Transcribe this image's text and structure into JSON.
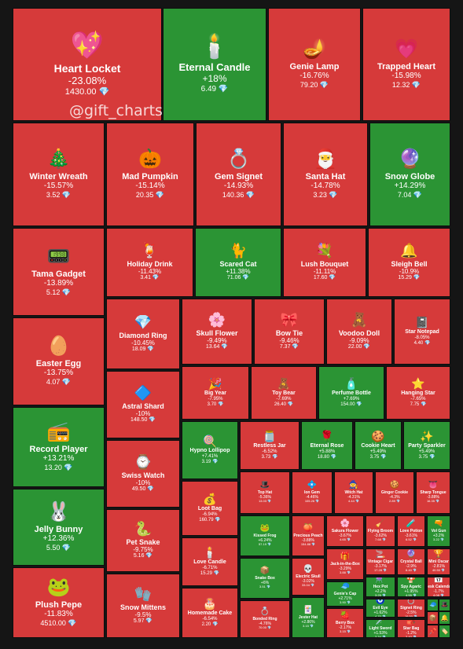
{
  "watermark": "@gift_charts",
  "colors": {
    "down": "#d63a3a",
    "up": "#2b9434",
    "gem": "#4fc3f7"
  },
  "diamond_glyph": "💎",
  "chart_data": {
    "type": "treemap",
    "value_unit": "💎",
    "items": [
      {
        "name": "Heart Locket",
        "change": "-23.08%",
        "price": "1430.00",
        "icon": "💖"
      },
      {
        "name": "Eternal Candle",
        "change": "+18%",
        "price": "6.49",
        "icon": "🕯️"
      },
      {
        "name": "Genie Lamp",
        "change": "-16.76%",
        "price": "79.20",
        "icon": "🪔"
      },
      {
        "name": "Trapped Heart",
        "change": "-15.98%",
        "price": "12.32",
        "icon": "💗"
      },
      {
        "name": "Winter Wreath",
        "change": "-15.57%",
        "price": "3.52",
        "icon": "🎄"
      },
      {
        "name": "Mad Pumpkin",
        "change": "-15.14%",
        "price": "20.35",
        "icon": "🎃"
      },
      {
        "name": "Gem Signet",
        "change": "-14.93%",
        "price": "140.36",
        "icon": "💍"
      },
      {
        "name": "Santa Hat",
        "change": "-14.78%",
        "price": "3.23",
        "icon": "🎅"
      },
      {
        "name": "Snow Globe",
        "change": "+14.29%",
        "price": "7.04",
        "icon": "🔮"
      },
      {
        "name": "Tama Gadget",
        "change": "-13.89%",
        "price": "5.12",
        "icon": "📟"
      },
      {
        "name": "Holiday Drink",
        "change": "-11.43%",
        "price": "3.41",
        "icon": "🍹"
      },
      {
        "name": "Scared Cat",
        "change": "+11.38%",
        "price": "71.06",
        "icon": "🐈"
      },
      {
        "name": "Lush Bouquet",
        "change": "-11.11%",
        "price": "17.60",
        "icon": "💐"
      },
      {
        "name": "Sleigh Bell",
        "change": "-10.9%",
        "price": "15.29",
        "icon": "🔔"
      },
      {
        "name": "Easter Egg",
        "change": "-13.75%",
        "price": "4.07",
        "icon": "🥚"
      },
      {
        "name": "Diamond Ring",
        "change": "-10.45%",
        "price": "18.09",
        "icon": "💎"
      },
      {
        "name": "Skull Flower",
        "change": "-9.49%",
        "price": "13.64",
        "icon": "🌸"
      },
      {
        "name": "Bow Tie",
        "change": "-9.46%",
        "price": "7.37",
        "icon": "🎀"
      },
      {
        "name": "Voodoo Doll",
        "change": "-9.09%",
        "price": "22.00",
        "icon": "🧸"
      },
      {
        "name": "Star Notepad",
        "change": "-8.05%",
        "price": "4.40",
        "icon": "📓"
      },
      {
        "name": "Astral Shard",
        "change": "-10%",
        "price": "148.50",
        "icon": "🔷"
      },
      {
        "name": "Big Year",
        "change": "-7.95%",
        "price": "3.70",
        "icon": "🎉"
      },
      {
        "name": "Toy Bear",
        "change": "-7.69%",
        "price": "26.40",
        "icon": "🧸"
      },
      {
        "name": "Perfume Bottle",
        "change": "+7.69%",
        "price": "154.00",
        "icon": "🧴"
      },
      {
        "name": "Hanging Star",
        "change": "-7.65%",
        "price": "7.75",
        "icon": "⭐"
      },
      {
        "name": "Record Player",
        "change": "+13.21%",
        "price": "13.20",
        "icon": "📻"
      },
      {
        "name": "Hypno Lollipop",
        "change": "+7.41%",
        "price": "3.19",
        "icon": "🍭"
      },
      {
        "name": "Restless Jar",
        "change": "-6.52%",
        "price": "3.73",
        "icon": "🫙"
      },
      {
        "name": "Eternal Rose",
        "change": "+5.88%",
        "price": "18.80",
        "icon": "🌹"
      },
      {
        "name": "Cookie Heart",
        "change": "+5.49%",
        "price": "3.75",
        "icon": "🍪"
      },
      {
        "name": "Party Sparkler",
        "change": "+5.49%",
        "price": "3.75",
        "icon": "✨"
      },
      {
        "name": "Swiss Watch",
        "change": "-10%",
        "price": "49.50",
        "icon": "⌚"
      },
      {
        "name": "Top Hat",
        "change": "-5.36%",
        "price": "13.03",
        "icon": "🎩"
      },
      {
        "name": "Ion Gem",
        "change": "-4.46%",
        "price": "105.26",
        "icon": "💠"
      },
      {
        "name": "Witch Hat",
        "change": "-4.31%",
        "price": "4.44",
        "icon": "🧙"
      },
      {
        "name": "Ginger Cookie",
        "change": "-4.3%",
        "price": "2.89",
        "icon": "🍪"
      },
      {
        "name": "Sharp Tongue",
        "change": "-3.88%",
        "price": "16.35",
        "icon": "👅"
      },
      {
        "name": "Loot Bag",
        "change": "-6.94%",
        "price": "160.79",
        "icon": "💰"
      },
      {
        "name": "Jelly Bunny",
        "change": "+12.36%",
        "price": "5.50",
        "icon": "🐰"
      },
      {
        "name": "Pet Snake",
        "change": "-9.75%",
        "price": "5.16",
        "icon": "🐍"
      },
      {
        "name": "Kissed Frog",
        "change": "+6.24%",
        "price": "57.19",
        "icon": "🐸"
      },
      {
        "name": "Precious Peach",
        "change": "-3.88%",
        "price": "154.88",
        "icon": "🍑"
      },
      {
        "name": "Sakura Flower",
        "change": "-3.67%",
        "price": "4.65",
        "icon": "🌸"
      },
      {
        "name": "Flying Broom",
        "change": "-3.62%",
        "price": "7.68",
        "icon": "🧹"
      },
      {
        "name": "Love Potion",
        "change": "-3.61%",
        "price": "6.52",
        "icon": "🧪"
      },
      {
        "name": "Vol Gun",
        "change": "+3.2%",
        "price": "3.22",
        "icon": "🔫"
      },
      {
        "name": "Love Candle",
        "change": "-6.71%",
        "price": "15.29",
        "icon": "🕯️"
      },
      {
        "name": "Snake Box",
        "change": "+6%",
        "price": "3.51",
        "icon": "📦"
      },
      {
        "name": "Electric Skull",
        "change": "-3.02%",
        "price": "33.04",
        "icon": "💀"
      },
      {
        "name": "Jack-in-the-Box",
        "change": "-3.29%",
        "price": "3.88",
        "icon": "🎁"
      },
      {
        "name": "Vintage Cigar",
        "change": "-3.17%",
        "price": "17.28",
        "icon": "🚬"
      },
      {
        "name": "Crystal Ball",
        "change": "-2.9%",
        "price": "6.40",
        "icon": "🔮"
      },
      {
        "name": "Mini Oscar",
        "change": "-2.81%",
        "price": "40.50",
        "icon": "🏆"
      },
      {
        "name": "Plush Pepe",
        "change": "-11.83%",
        "price": "4510.00",
        "icon": "🐸"
      },
      {
        "name": "Snow Mittens",
        "change": "-9.5%",
        "price": "5.97",
        "icon": "🧤"
      },
      {
        "name": "Homemade Cake",
        "change": "-6.54%",
        "price": "2.20",
        "icon": "🎂"
      },
      {
        "name": "Bonded Ring",
        "change": "-4.76%",
        "price": "70.00",
        "icon": "💍"
      },
      {
        "name": "Jester Hat",
        "change": "+2.86%",
        "price": "3.15",
        "icon": "🃏"
      },
      {
        "name": "Genie's Cap",
        "change": "+2.71%",
        "price": "3.90",
        "icon": "🧢"
      },
      {
        "name": "Berry Box",
        "change": "-2.17%",
        "price": "3.15",
        "icon": "🍓"
      },
      {
        "name": "Hex Pot",
        "change": "+2.2%",
        "price": "3.25",
        "icon": "⚗️"
      },
      {
        "name": "Spy Agaric",
        "change": "+1.95%",
        "price": "4.55",
        "icon": "🍄"
      },
      {
        "name": "Desk Calendar",
        "change": "-1.7%",
        "price": "4.08",
        "icon": "📅"
      },
      {
        "name": "Evil Eye",
        "change": "+1.62%",
        "price": "4.70",
        "icon": "🧿"
      },
      {
        "name": "Signet Ring",
        "change": "-2.5%",
        "price": "19.50",
        "icon": "💍"
      },
      {
        "name": "Light Sword",
        "change": "+1.53%",
        "price": "3.34",
        "icon": "🗡️"
      },
      {
        "name": "Star Bag",
        "change": "-1.2%",
        "price": "3.40",
        "icon": "🎒"
      },
      {
        "name": "Cap",
        "change": "+0.8%",
        "price": "3.20",
        "icon": "🧢"
      },
      {
        "name": "Hat",
        "change": "+0.5%",
        "price": "3.10",
        "icon": "🎩"
      },
      {
        "name": "Box",
        "change": "-0.6%",
        "price": "3.00",
        "icon": "📦"
      },
      {
        "name": "Bell",
        "change": "+0.4%",
        "price": "3.05",
        "icon": "🔔"
      },
      {
        "name": "Pin",
        "change": "-0.3%",
        "price": "3.02",
        "icon": "📌"
      },
      {
        "name": "Tag",
        "change": "+0.2%",
        "price": "3.01",
        "icon": "🏷️"
      },
      {
        "name": "Mug",
        "change": "+0.1%",
        "price": "3.00",
        "icon": "☕"
      }
    ]
  }
}
